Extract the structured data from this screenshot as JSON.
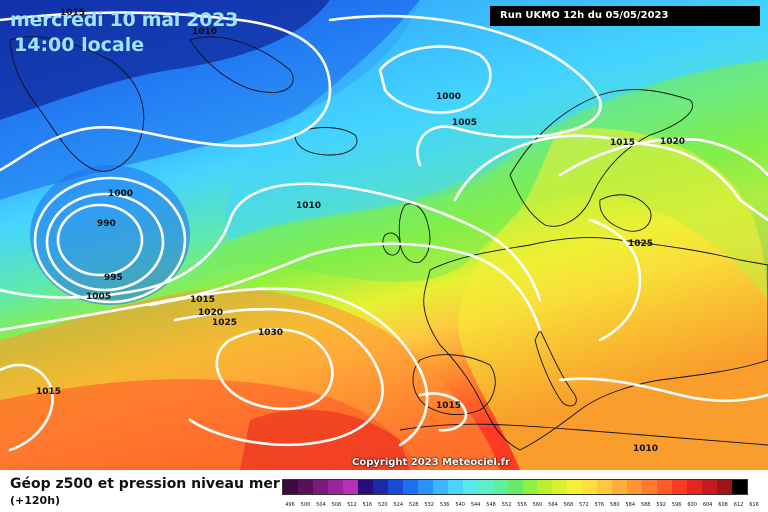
{
  "header": {
    "date": "mercredi 10 mai 2023",
    "time": "14:00 locale",
    "run": "Run UKMO 12h du 05/05/2023"
  },
  "copyright": "Copyright 2023 Meteociel.fr",
  "footer": {
    "title": "Géop z500 et pression niveau mer",
    "subtitle": "(+120h)"
  },
  "isobar_labels": [
    {
      "text": "1015",
      "name": "isobar-label-1015-topleft"
    },
    {
      "text": "1010",
      "name": "isobar-label-1010-top"
    },
    {
      "text": "1000",
      "name": "isobar-label-1000-north"
    },
    {
      "text": "1005",
      "name": "isobar-label-1005-north"
    },
    {
      "text": "1015",
      "name": "isobar-label-1015-scandinavia"
    },
    {
      "text": "1020",
      "name": "isobar-label-1020-scandinavia"
    },
    {
      "text": "1000",
      "name": "isobar-label-1000-low"
    },
    {
      "text": "990",
      "name": "isobar-label-990-low"
    },
    {
      "text": "995",
      "name": "isobar-label-995-low"
    },
    {
      "text": "1005",
      "name": "isobar-label-1005-low"
    },
    {
      "text": "1010",
      "name": "isobar-label-1010-atlantic"
    },
    {
      "text": "1025",
      "name": "isobar-label-1025-europe"
    },
    {
      "text": "1015",
      "name": "isobar-label-1015-mid"
    },
    {
      "text": "1020",
      "name": "isobar-label-1020-mid"
    },
    {
      "text": "1025",
      "name": "isobar-label-1025-mid"
    },
    {
      "text": "1030",
      "name": "isobar-label-1030-high"
    },
    {
      "text": "1015",
      "name": "isobar-label-1015-west"
    },
    {
      "text": "1015",
      "name": "isobar-label-1015-iberia"
    },
    {
      "text": "1010",
      "name": "isobar-label-1010-southeast"
    }
  ],
  "color_scale": {
    "labels": [
      "496",
      "500",
      "504",
      "508",
      "512",
      "516",
      "520",
      "524",
      "528",
      "532",
      "536",
      "540",
      "544",
      "548",
      "552",
      "556",
      "560",
      "564",
      "568",
      "572",
      "576",
      "580",
      "584",
      "588",
      "592",
      "596",
      "600",
      "604",
      "608",
      "612",
      "616"
    ],
    "colors": [
      "#3c0a3c",
      "#5a0f5a",
      "#7a1a7a",
      "#9b269b",
      "#b82fb8",
      "#2a0c7a",
      "#1a2aa8",
      "#1a4ad8",
      "#1e6ef0",
      "#2a92ff",
      "#3ab6ff",
      "#49d3ff",
      "#5ae8f0",
      "#5ef0c8",
      "#5ef09a",
      "#66ec66",
      "#8ef040",
      "#b8f030",
      "#dcf032",
      "#f4f034",
      "#ffe040",
      "#ffc840",
      "#ffae3a",
      "#ff9434",
      "#ff7a2e",
      "#ff5a28",
      "#ff3a22",
      "#e8241e",
      "#c81a1a",
      "#a01414",
      "#000000"
    ]
  }
}
